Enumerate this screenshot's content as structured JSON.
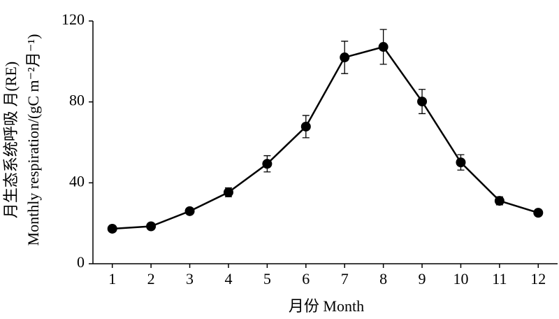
{
  "chart_data": {
    "type": "line",
    "x_label": "月份 Month",
    "y_label": [
      "月生态系统呼吸 月(RE)",
      "Monthly respiration/(gC m⁻²月⁻¹)"
    ],
    "x": [
      1,
      2,
      3,
      4,
      5,
      6,
      7,
      8,
      9,
      10,
      11,
      12
    ],
    "series": [
      {
        "color": "#000000",
        "values": [
          17.3,
          18.5,
          26,
          35.3,
          49.4,
          67.8,
          102,
          107.2,
          80.2,
          50.1,
          31.1,
          25.2
        ],
        "errors": [
          1,
          1,
          1.2,
          2.2,
          4,
          5.5,
          8,
          8.6,
          6,
          3.8,
          2,
          1
        ]
      }
    ],
    "xlim": [
      0.5,
      12.5
    ],
    "xticks": [
      1,
      2,
      3,
      4,
      5,
      6,
      7,
      8,
      9,
      10,
      11,
      12
    ],
    "ylim": [
      0,
      120
    ],
    "yticks": [
      0,
      40,
      80,
      120
    ]
  }
}
